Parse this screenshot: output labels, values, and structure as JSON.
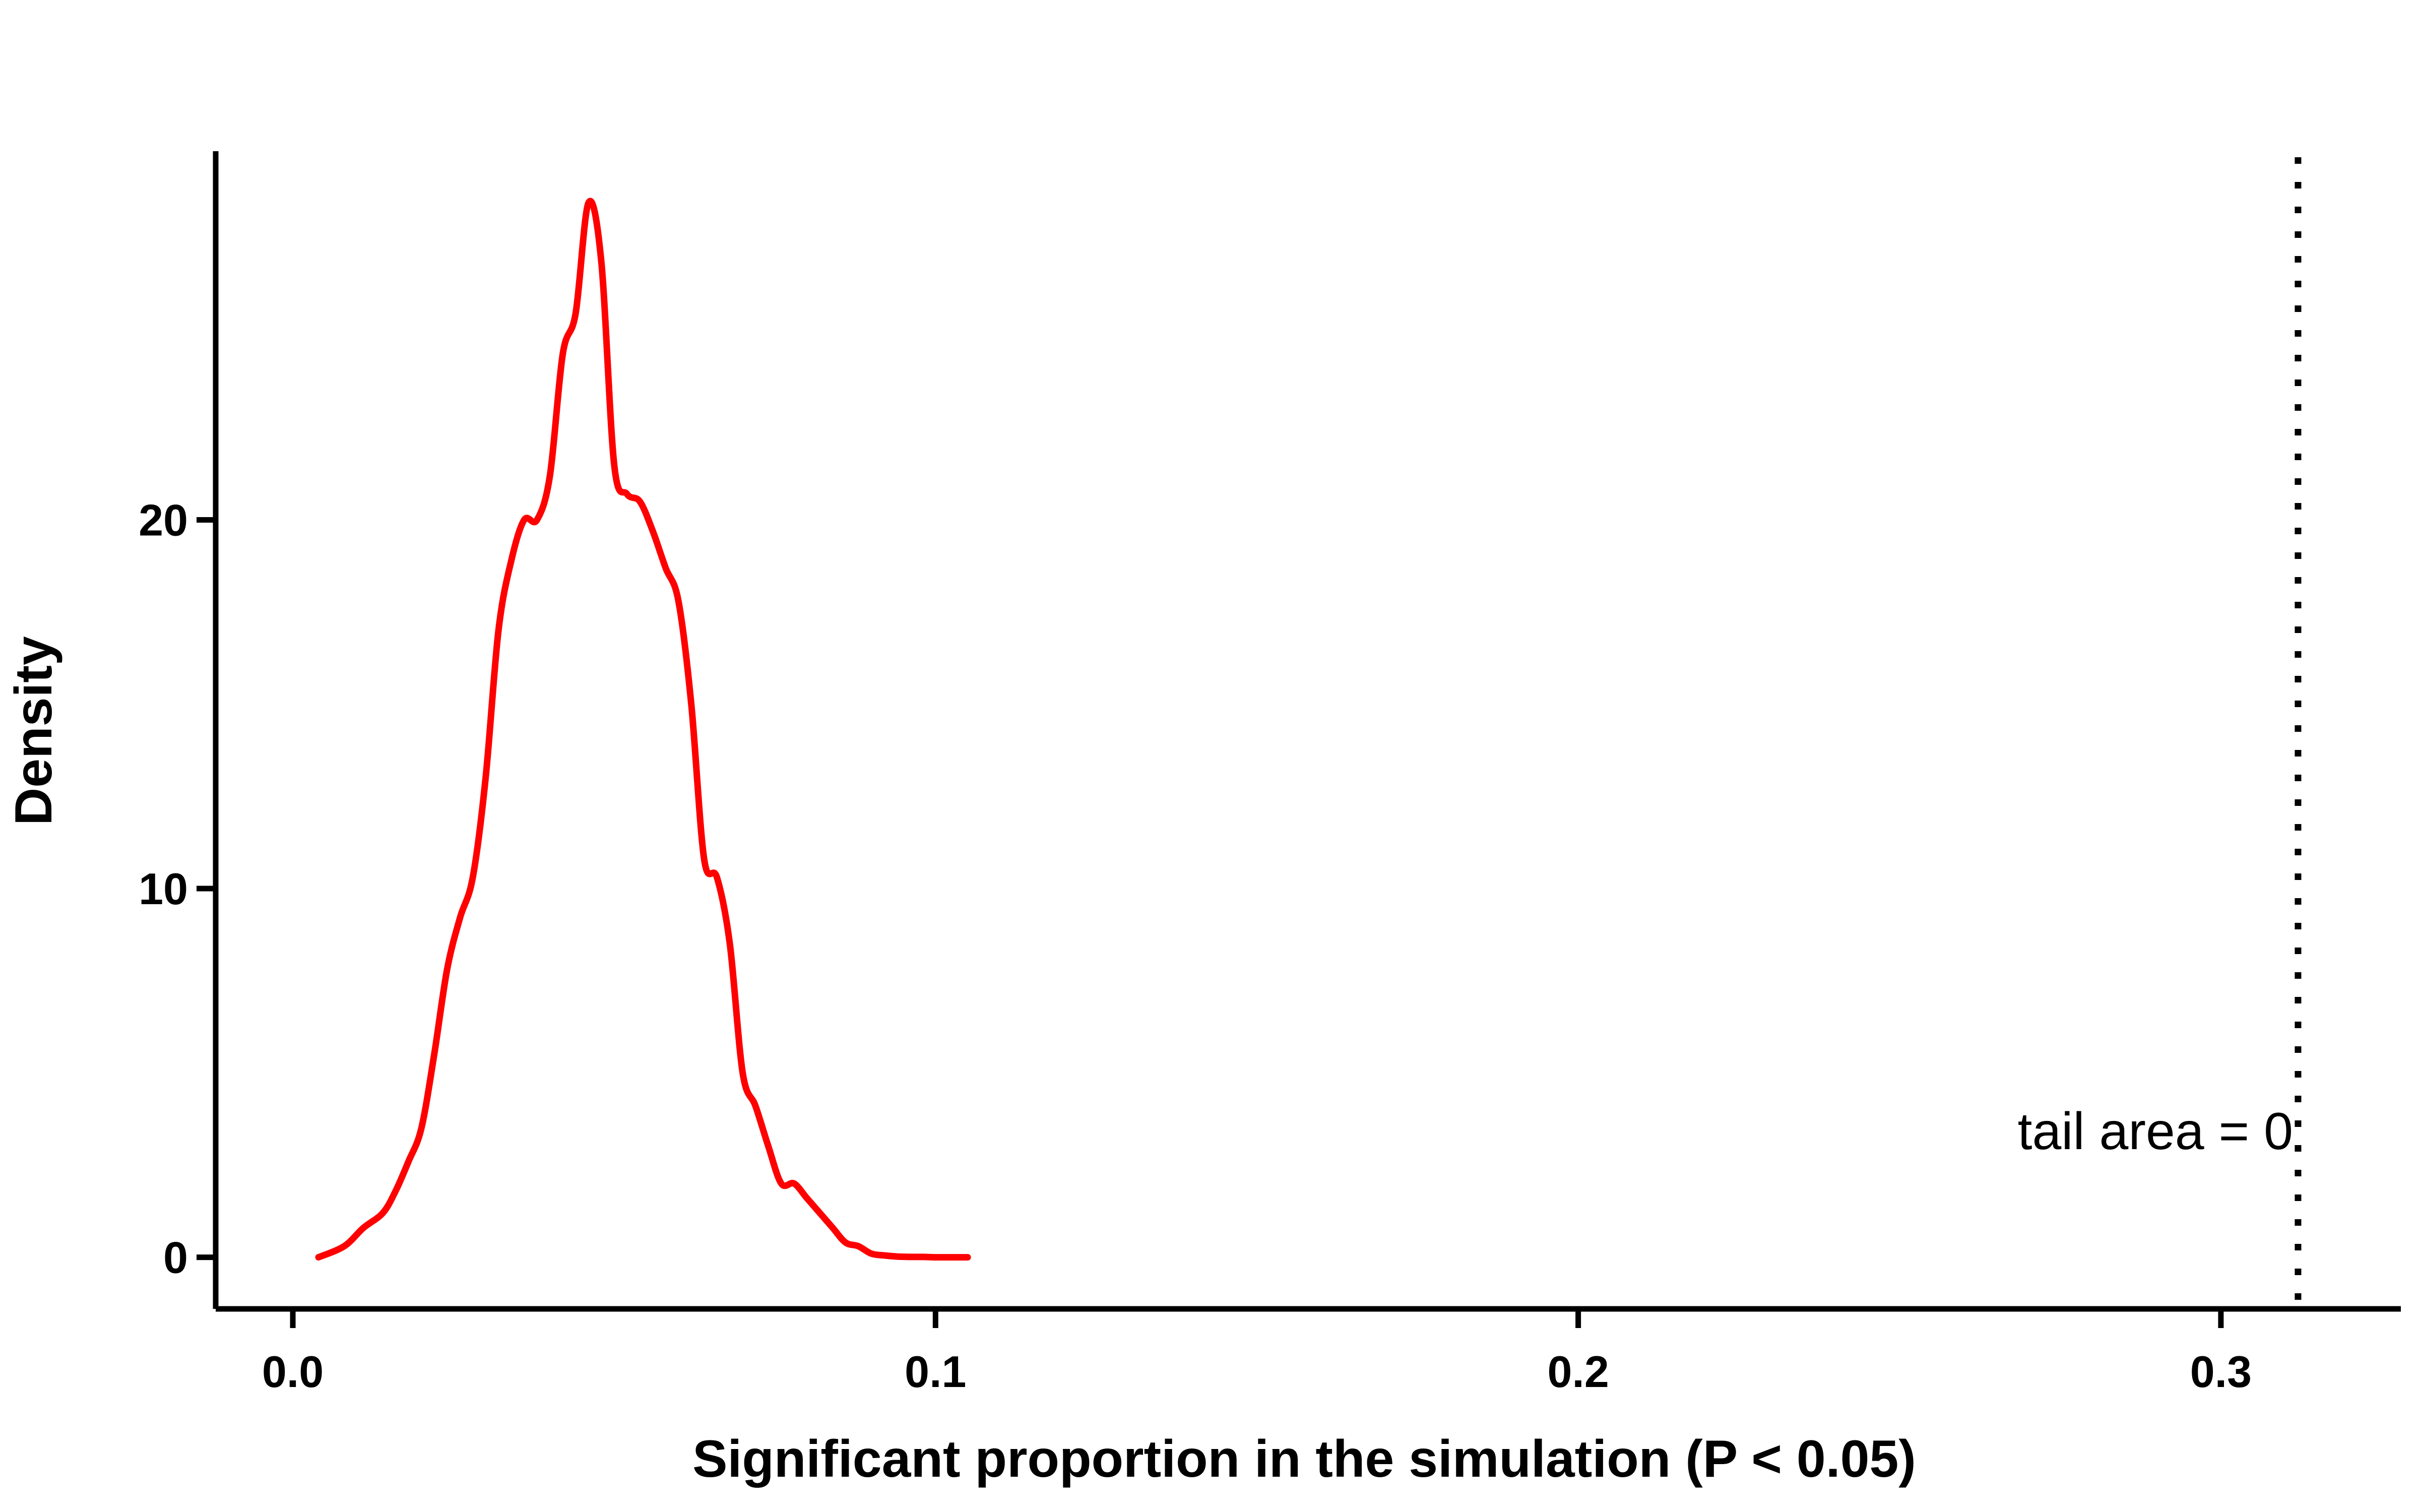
{
  "chart_data": {
    "type": "line",
    "xlabel": "Significant proportion in the simulation (P < 0.05)",
    "ylabel": "Density",
    "xlim": [
      -0.012,
      0.328
    ],
    "ylim": [
      -1.4,
      30
    ],
    "x_ticks": [
      0.0,
      0.1,
      0.2,
      0.3
    ],
    "x_tick_labels": [
      "0.0",
      "0.1",
      "0.2",
      "0.3"
    ],
    "y_ticks": [
      0,
      10,
      20
    ],
    "y_tick_labels": [
      "0",
      "10",
      "20"
    ],
    "grid": false,
    "series": [
      {
        "color": "#ff0000",
        "style": "solid",
        "x": [
          0.004,
          0.008,
          0.011,
          0.014,
          0.016,
          0.018,
          0.02,
          0.022,
          0.024,
          0.026,
          0.028,
          0.03,
          0.032,
          0.034,
          0.036,
          0.038,
          0.04,
          0.042,
          0.044,
          0.046,
          0.048,
          0.05,
          0.052,
          0.054,
          0.056,
          0.058,
          0.06,
          0.062,
          0.064,
          0.066,
          0.068,
          0.07,
          0.072,
          0.074,
          0.076,
          0.078,
          0.08,
          0.082,
          0.084,
          0.086,
          0.088,
          0.09,
          0.092,
          0.094,
          0.096,
          0.098,
          0.1,
          0.102,
          0.105
        ],
        "y": [
          0.0,
          0.3,
          0.8,
          1.2,
          1.8,
          2.6,
          3.5,
          5.5,
          7.8,
          9.2,
          10.3,
          13.0,
          17.0,
          18.9,
          20.0,
          20.0,
          21.2,
          24.5,
          25.6,
          28.6,
          27.0,
          21.5,
          20.7,
          20.5,
          19.7,
          18.7,
          17.8,
          15.0,
          10.8,
          10.3,
          8.5,
          5.0,
          4.1,
          3.0,
          2.0,
          2.0,
          1.6,
          1.2,
          0.8,
          0.4,
          0.3,
          0.1,
          0.05,
          0.02,
          0.01,
          0.01,
          0.0,
          0.0,
          0.0
        ]
      }
    ],
    "reference_line": {
      "x": 0.312,
      "style": "dotted",
      "color": "#000000"
    },
    "annotation": "tail area =  0"
  }
}
